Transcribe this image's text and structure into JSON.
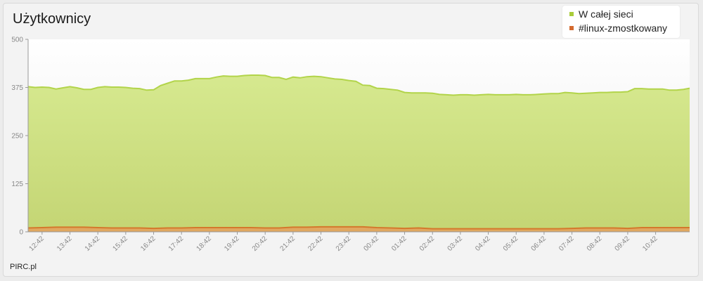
{
  "title": "Użytkownicy",
  "footer": "PIRC.pl",
  "legend": [
    {
      "label": "W całej sieci",
      "color": "#a9cc3a"
    },
    {
      "label": "#linux-zmostkowany",
      "color": "#d46a2e"
    }
  ],
  "colors": {
    "area_top": "#d6e98f",
    "area_bottom": "#c4d574",
    "line_main": "#b2d44a",
    "area2_fill": "#e0a860",
    "line2": "#d4782c",
    "plot_bg_top": "#ffffff",
    "plot_bg_bottom": "#ececec"
  },
  "chart_data": {
    "type": "area",
    "title": "Użytkownicy",
    "ylim": [
      0,
      500
    ],
    "yticks": [
      "0",
      "125",
      "250",
      "375",
      "500"
    ],
    "xlim": [
      0,
      23.72
    ],
    "x_ticks": [
      {
        "x": 0.5,
        "label": "12:42"
      },
      {
        "x": 1.5,
        "label": "13:42"
      },
      {
        "x": 2.5,
        "label": "14:42"
      },
      {
        "x": 3.5,
        "label": "15:42"
      },
      {
        "x": 4.5,
        "label": "16:42"
      },
      {
        "x": 5.5,
        "label": "17:42"
      },
      {
        "x": 6.5,
        "label": "18:42"
      },
      {
        "x": 7.5,
        "label": "19:42"
      },
      {
        "x": 8.5,
        "label": "20:42"
      },
      {
        "x": 9.5,
        "label": "21:42"
      },
      {
        "x": 10.5,
        "label": "22:42"
      },
      {
        "x": 11.5,
        "label": "23:42"
      },
      {
        "x": 12.5,
        "label": "00:42"
      },
      {
        "x": 13.5,
        "label": "01:42"
      },
      {
        "x": 14.5,
        "label": "02:42"
      },
      {
        "x": 15.5,
        "label": "03:42"
      },
      {
        "x": 16.5,
        "label": "04:42"
      },
      {
        "x": 17.5,
        "label": "05:42"
      },
      {
        "x": 18.5,
        "label": "06:42"
      },
      {
        "x": 19.5,
        "label": "07:42"
      },
      {
        "x": 20.5,
        "label": "08:42"
      },
      {
        "x": 21.5,
        "label": "09:42"
      },
      {
        "x": 22.5,
        "label": "10:42"
      }
    ],
    "grid": false,
    "legend_position": "top-right",
    "series": [
      {
        "name": "W całej sieci",
        "x": [
          0,
          0.25,
          0.5,
          0.75,
          1.0,
          1.25,
          1.5,
          1.75,
          2.0,
          2.25,
          2.5,
          2.75,
          3.0,
          3.25,
          3.5,
          3.75,
          4.0,
          4.25,
          4.5,
          4.75,
          5.0,
          5.25,
          5.5,
          5.75,
          6.0,
          6.25,
          6.5,
          6.75,
          7.0,
          7.25,
          7.5,
          7.75,
          8.0,
          8.25,
          8.5,
          8.75,
          9.0,
          9.25,
          9.5,
          9.75,
          10.0,
          10.25,
          10.5,
          10.75,
          11.0,
          11.25,
          11.5,
          11.75,
          12.0,
          12.25,
          12.5,
          12.75,
          13.0,
          13.25,
          13.5,
          13.75,
          14.0,
          14.25,
          14.5,
          14.75,
          15.0,
          15.25,
          15.5,
          15.75,
          16.0,
          16.25,
          16.5,
          16.75,
          17.0,
          17.25,
          17.5,
          17.75,
          18.0,
          18.25,
          18.5,
          18.75,
          19.0,
          19.25,
          19.5,
          19.75,
          20.0,
          20.25,
          20.5,
          20.75,
          21.0,
          21.25,
          21.5,
          21.75,
          22.0,
          22.25,
          22.5,
          22.75,
          23.0,
          23.25,
          23.5,
          23.72
        ],
        "values": [
          377,
          375,
          376,
          375,
          371,
          374,
          377,
          374,
          370,
          370,
          375,
          377,
          376,
          376,
          375,
          373,
          372,
          368,
          369,
          380,
          386,
          392,
          392,
          394,
          398,
          398,
          398,
          402,
          405,
          404,
          404,
          406,
          407,
          407,
          406,
          401,
          401,
          396,
          402,
          400,
          403,
          404,
          403,
          400,
          397,
          396,
          393,
          391,
          381,
          380,
          373,
          372,
          370,
          368,
          362,
          361,
          361,
          361,
          360,
          357,
          356,
          355,
          356,
          356,
          355,
          356,
          357,
          356,
          356,
          356,
          357,
          356,
          356,
          357,
          358,
          359,
          359,
          362,
          361,
          359,
          360,
          361,
          362,
          362,
          363,
          363,
          364,
          372,
          372,
          371,
          371,
          371,
          368,
          368,
          370,
          373
        ]
      },
      {
        "name": "#linux-zmostkowany",
        "x": [
          0,
          0.5,
          1,
          1.5,
          2,
          2.5,
          3,
          3.5,
          4,
          4.5,
          5,
          5.5,
          6,
          6.5,
          7,
          7.5,
          8,
          8.5,
          9,
          9.5,
          10,
          10.5,
          11,
          11.5,
          12,
          12.5,
          13,
          13.5,
          14,
          14.5,
          15,
          15.5,
          16,
          16.5,
          17,
          17.5,
          18,
          18.5,
          19,
          19.5,
          20,
          20.5,
          21,
          21.5,
          22,
          22.5,
          23,
          23.72
        ],
        "values": [
          10,
          11,
          12,
          12,
          12,
          11,
          10,
          10,
          10,
          9,
          10,
          10,
          11,
          11,
          11,
          11,
          11,
          10,
          10,
          12,
          12,
          13,
          13,
          13,
          13,
          11,
          10,
          9,
          10,
          8,
          8,
          8,
          8,
          8,
          8,
          8,
          8,
          8,
          8,
          9,
          10,
          10,
          10,
          9,
          11,
          11,
          11,
          11
        ]
      }
    ]
  }
}
